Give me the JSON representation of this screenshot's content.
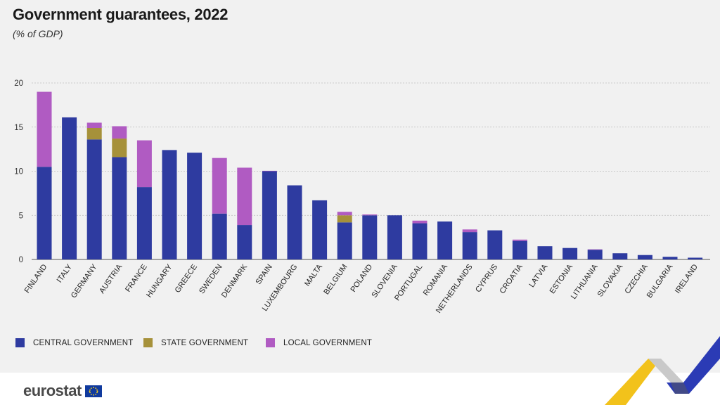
{
  "header": {
    "title": "Government guarantees, 2022",
    "subtitle": "(% of GDP)"
  },
  "legend": [
    {
      "label": "CENTRAL GOVERNMENT",
      "color": "#2e3ba0"
    },
    {
      "label": "STATE GOVERNMENT",
      "color": "#a6913a"
    },
    {
      "label": "LOCAL GOVERNMENT",
      "color": "#b05bc2"
    }
  ],
  "footer": {
    "logo_text": "eurostat"
  },
  "chart_data": {
    "type": "bar",
    "stacked": true,
    "categories": [
      "FINLAND",
      "ITALY",
      "GERMANY",
      "AUSTRIA",
      "FRANCE",
      "HUNGARY",
      "GREECE",
      "SWEDEN",
      "DENMARK",
      "SPAIN",
      "LUXEMBOURG",
      "MALTA",
      "BELGIUM",
      "POLAND",
      "SLOVENIA",
      "PORTUGAL",
      "ROMANIA",
      "NETHERLANDS",
      "CYPRUS",
      "CROATIA",
      "LATVIA",
      "ESTONIA",
      "LITHUANIA",
      "SLOVAKIA",
      "CZECHIA",
      "BULGARIA",
      "IRELAND"
    ],
    "series": [
      {
        "name": "CENTRAL GOVERNMENT",
        "color": "#2e3ba0",
        "values": [
          10.5,
          16.1,
          13.6,
          11.6,
          8.2,
          12.4,
          12.1,
          5.2,
          3.9,
          10.0,
          8.4,
          6.7,
          4.2,
          5.0,
          5.0,
          4.1,
          4.3,
          3.1,
          3.3,
          2.1,
          1.5,
          1.3,
          1.1,
          0.7,
          0.5,
          0.3,
          0.2
        ]
      },
      {
        "name": "STATE GOVERNMENT",
        "color": "#a6913a",
        "values": [
          0,
          0,
          1.3,
          2.1,
          0,
          0,
          0,
          0,
          0,
          0,
          0,
          0,
          0.8,
          0,
          0,
          0,
          0,
          0,
          0,
          0,
          0,
          0,
          0,
          0,
          0,
          0,
          0
        ]
      },
      {
        "name": "LOCAL GOVERNMENT",
        "color": "#b05bc2",
        "values": [
          8.5,
          0,
          0.6,
          1.4,
          5.3,
          0,
          0,
          6.3,
          6.5,
          0.05,
          0,
          0,
          0.4,
          0.1,
          0,
          0.3,
          0,
          0.3,
          0,
          0.15,
          0,
          0,
          0.05,
          0,
          0,
          0,
          0
        ]
      }
    ],
    "yticks": [
      0,
      5,
      10,
      15,
      20
    ],
    "ylim": [
      0,
      20
    ],
    "grid": true,
    "legend_position": "bottom-left"
  }
}
